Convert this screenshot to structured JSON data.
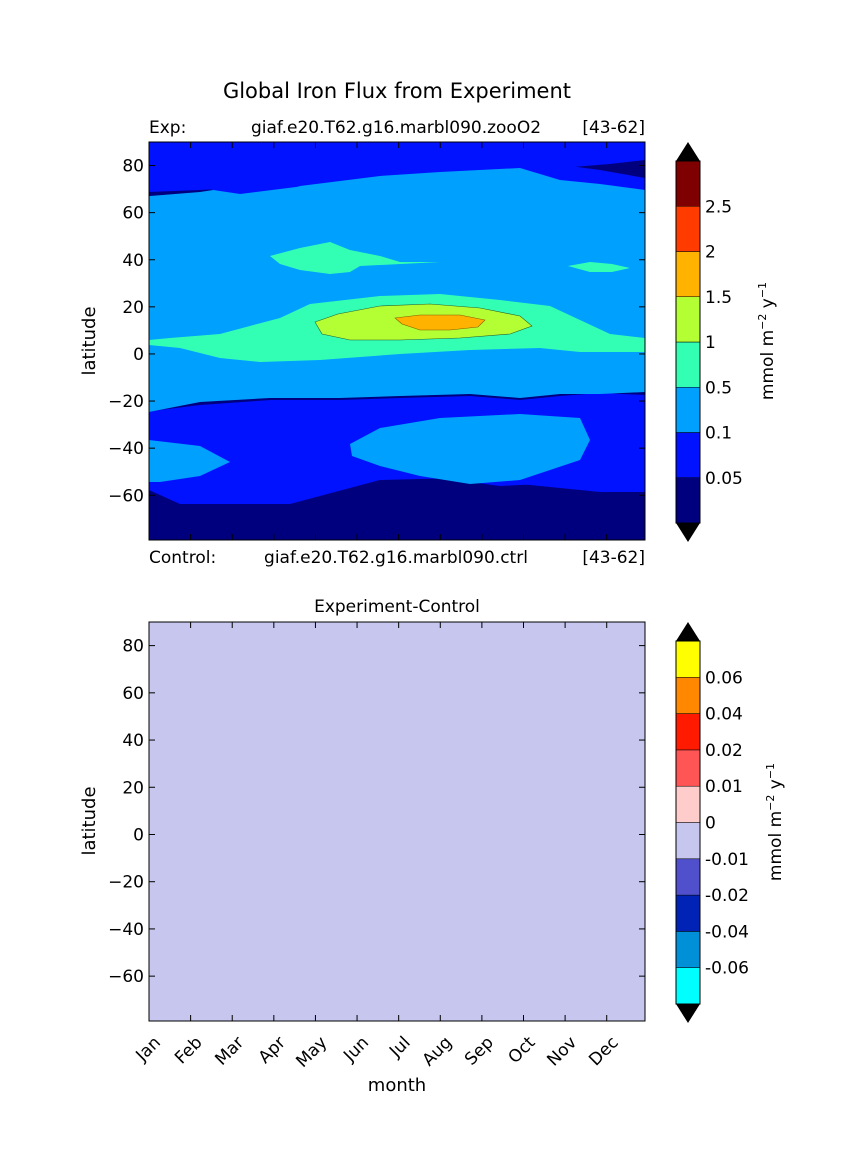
{
  "figure_title": "Global Iron Flux from Experiment",
  "top_panel": {
    "exp_label": "Exp:",
    "exp_case": "giaf.e20.T62.g16.marbl090.zooO2",
    "exp_years": "[43-62]",
    "control_label": "Control:",
    "control_case": "giaf.e20.T62.g16.marbl090.ctrl",
    "control_years": "[43-62]"
  },
  "bottom_panel": {
    "title": "Experiment-Control"
  },
  "colorbar_top": {
    "unit_label": "mmol m$^{-2}$ y$^{-1}$",
    "tick_labels": [
      "0.05",
      "0.1",
      "0.5",
      "1",
      "1.5",
      "2",
      "2.5"
    ],
    "colors": [
      "#00007f",
      "#0012ff",
      "#00a0ff",
      "#33ffb4",
      "#b4ff33",
      "#ffb300",
      "#ff3b00",
      "#7f0000"
    ]
  },
  "colorbar_bottom": {
    "unit_label": "mmol m$^{-2}$ y$^{-1}$",
    "tick_labels": [
      "-0.06",
      "-0.04",
      "-0.02",
      "-0.01",
      "0",
      "0.01",
      "0.02",
      "0.04",
      "0.06"
    ],
    "colors": [
      "#00ffff",
      "#0090d8",
      "#0023b5",
      "#5050cc",
      "#c6c6ee",
      "#ffcccc",
      "#ff5555",
      "#ff1a00",
      "#ff8800",
      "#ffff00"
    ]
  },
  "chart_data": [
    {
      "type": "heatmap",
      "title": "",
      "xlabel": "",
      "ylabel": "latitude",
      "x_categories": [
        "Jan",
        "Feb",
        "Mar",
        "Apr",
        "May",
        "Jun",
        "Jul",
        "Aug",
        "Sep",
        "Oct",
        "Nov",
        "Dec"
      ],
      "ylim": [
        -79,
        90
      ],
      "y_ticks": [
        -60,
        -40,
        -20,
        0,
        20,
        40,
        60,
        80
      ],
      "color_levels": [
        0,
        0.05,
        0.1,
        0.5,
        1,
        1.5,
        2,
        2.5,
        3
      ],
      "regions_description": [
        {
          "lat_range": [
            -79,
            -62
          ],
          "level": "<0.05"
        },
        {
          "lat_range": [
            -62,
            -18
          ],
          "level": "0.05-0.1"
        },
        {
          "lat_range": [
            -55,
            -27
          ],
          "level": "0.1-0.5"
        },
        {
          "lat_range": [
            -18,
            75
          ],
          "level": "0.1-0.5"
        },
        {
          "lat_range": [
            0,
            22
          ],
          "level": "0.5-1"
        },
        {
          "lat_range": [
            10,
            20
          ],
          "level": "1-1.5"
        },
        {
          "lat_range": [
            12,
            16
          ],
          "level": "1.5-2"
        },
        {
          "lat_range": [
            75,
            90
          ],
          "level": "<0.05"
        }
      ]
    },
    {
      "type": "heatmap",
      "title": "Experiment-Control",
      "xlabel": "month",
      "ylabel": "latitude",
      "x_categories": [
        "Jan",
        "Feb",
        "Mar",
        "Apr",
        "May",
        "Jun",
        "Jul",
        "Aug",
        "Sep",
        "Oct",
        "Nov",
        "Dec"
      ],
      "ylim": [
        -79,
        90
      ],
      "y_ticks": [
        -60,
        -40,
        -20,
        0,
        20,
        40,
        60,
        80
      ],
      "color_levels": [
        -0.06,
        -0.04,
        -0.02,
        -0.01,
        0,
        0.01,
        0.02,
        0.04,
        0.06
      ],
      "uniform_value_range": [
        -0.01,
        0
      ]
    }
  ]
}
